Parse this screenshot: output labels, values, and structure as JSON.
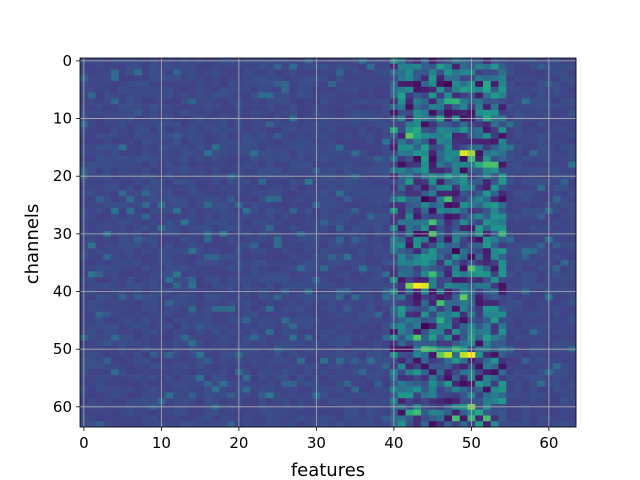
{
  "chart_data": {
    "type": "heatmap",
    "title": "",
    "xlabel": "features",
    "ylabel": "channels",
    "xlim": [
      -0.5,
      63.5
    ],
    "ylim": [
      63.5,
      -0.5
    ],
    "x_ticks": [
      "0",
      "10",
      "20",
      "30",
      "40",
      "50",
      "60"
    ],
    "y_ticks": [
      "0",
      "10",
      "20",
      "30",
      "40",
      "50",
      "60"
    ],
    "grid": true,
    "colormap": "viridis",
    "rows": 64,
    "cols": 64,
    "background_value": 0.22,
    "active_columns": [
      40,
      54
    ],
    "hot_cells": [
      {
        "row": 1,
        "col": 46,
        "value": 0.55
      },
      {
        "row": 5,
        "col": 52,
        "value": 0.6
      },
      {
        "row": 6,
        "col": 53,
        "value": 0.55
      },
      {
        "row": 7,
        "col": 48,
        "value": 0.65
      },
      {
        "row": 13,
        "col": 42,
        "value": 0.75
      },
      {
        "row": 16,
        "col": 49,
        "value": 0.95
      },
      {
        "row": 16,
        "col": 50,
        "value": 0.85
      },
      {
        "row": 39,
        "col": 42,
        "value": 0.8
      },
      {
        "row": 39,
        "col": 43,
        "value": 1.0
      },
      {
        "row": 39,
        "col": 44,
        "value": 0.95
      },
      {
        "row": 41,
        "col": 49,
        "value": 0.75
      },
      {
        "row": 42,
        "col": 46,
        "value": 0.7
      },
      {
        "row": 50,
        "col": 45,
        "value": 0.65
      },
      {
        "row": 51,
        "col": 46,
        "value": 0.75
      },
      {
        "row": 51,
        "col": 47,
        "value": 0.9
      },
      {
        "row": 51,
        "col": 49,
        "value": 0.9
      },
      {
        "row": 51,
        "col": 50,
        "value": 1.0
      },
      {
        "row": 60,
        "col": 50,
        "value": 0.8
      },
      {
        "row": 62,
        "col": 48,
        "value": 0.7
      }
    ],
    "dark_cells": [
      {
        "row": 4,
        "col": 47,
        "value": 0.0
      },
      {
        "row": 9,
        "col": 45,
        "value": 0.05
      },
      {
        "row": 24,
        "col": 44,
        "value": 0.0
      },
      {
        "row": 33,
        "col": 48,
        "value": 0.0
      },
      {
        "row": 36,
        "col": 49,
        "value": 0.05
      },
      {
        "row": 46,
        "col": 44,
        "value": 0.0
      },
      {
        "row": 55,
        "col": 47,
        "value": 0.05
      }
    ]
  }
}
